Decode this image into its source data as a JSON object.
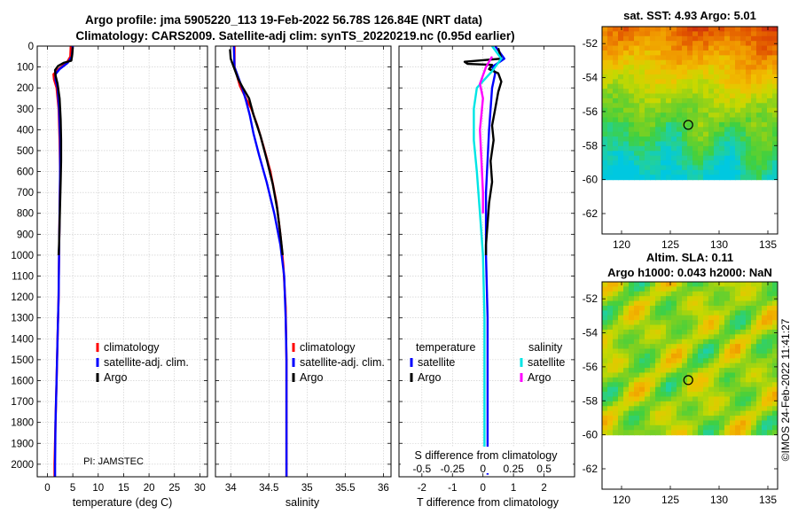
{
  "titles": {
    "line1": "Argo profile: jma 5905220_113 19-Feb-2022 56.78S 126.84E (NRT data)",
    "line2": "Climatology: CARS2009. Satellite-adj clim: synTS_20220219.nc (0.95d earlier)"
  },
  "credit": "PI: JAMSTEC",
  "footer_stamp": "©IMOS 24-Feb-2022 11:41:27",
  "depth_ticks": [
    0,
    100,
    200,
    300,
    400,
    500,
    600,
    700,
    800,
    900,
    1000,
    1100,
    1200,
    1300,
    1400,
    1500,
    1600,
    1700,
    1800,
    1900,
    2000
  ],
  "colors": {
    "climatology": "#ff0000",
    "satellite": "#0000ff",
    "argo": "#000000",
    "sat_diff_s": "#00e5e5",
    "argo_diff_s": "#ff00ff"
  },
  "chart_data": [
    {
      "id": "temperature",
      "type": "line",
      "xlabel": "temperature (deg C)",
      "ylabel": "depth",
      "xlim": [
        -2,
        31.5
      ],
      "ylim": [
        2060,
        0
      ],
      "xticks": [
        0,
        5,
        10,
        15,
        20,
        25,
        30
      ],
      "legend": {
        "entries": [
          "climatology",
          "satellite-adj. clim.",
          "Argo"
        ],
        "placement": "bottom-right"
      },
      "series": [
        {
          "name": "climatology",
          "color": "#ff0000",
          "points": [
            [
              4.6,
              0
            ],
            [
              4.5,
              50
            ],
            [
              3.8,
              80
            ],
            [
              2.2,
              110
            ],
            [
              1.2,
              135
            ],
            [
              1.3,
              160
            ],
            [
              1.8,
              200
            ],
            [
              2.2,
              300
            ],
            [
              2.4,
              450
            ],
            [
              2.5,
              600
            ],
            [
              2.4,
              800
            ],
            [
              2.3,
              1000
            ],
            [
              2.2,
              1200
            ],
            [
              2.0,
              1400
            ],
            [
              1.8,
              1600
            ],
            [
              1.6,
              1800
            ],
            [
              1.4,
              2000
            ],
            [
              1.4,
              2060
            ]
          ]
        },
        {
          "name": "satellite-adj. clim.",
          "color": "#0000ff",
          "points": [
            [
              5.0,
              0
            ],
            [
              4.8,
              50
            ],
            [
              4.0,
              80
            ],
            [
              2.4,
              110
            ],
            [
              1.6,
              135
            ],
            [
              1.6,
              160
            ],
            [
              2.0,
              200
            ],
            [
              2.3,
              300
            ],
            [
              2.5,
              450
            ],
            [
              2.5,
              600
            ],
            [
              2.4,
              800
            ],
            [
              2.3,
              1000
            ],
            [
              2.2,
              1200
            ],
            [
              2.0,
              1400
            ],
            [
              1.8,
              1600
            ],
            [
              1.6,
              1800
            ],
            [
              1.5,
              2000
            ],
            [
              1.5,
              2060
            ]
          ]
        },
        {
          "name": "Argo",
          "color": "#000000",
          "points": [
            [
              5.0,
              5
            ],
            [
              4.9,
              40
            ],
            [
              4.7,
              70
            ],
            [
              3.2,
              80
            ],
            [
              2.1,
              95
            ],
            [
              1.5,
              115
            ],
            [
              1.6,
              140
            ],
            [
              2.0,
              180
            ],
            [
              2.4,
              250
            ],
            [
              2.6,
              350
            ],
            [
              2.7,
              450
            ],
            [
              2.7,
              550
            ],
            [
              2.6,
              650
            ],
            [
              2.5,
              750
            ],
            [
              2.4,
              850
            ],
            [
              2.3,
              950
            ],
            [
              2.2,
              1000
            ]
          ]
        }
      ]
    },
    {
      "id": "salinity",
      "type": "line",
      "xlabel": "salinity",
      "ylabel": "depth",
      "xlim": [
        33.8,
        36.1
      ],
      "ylim": [
        2060,
        0
      ],
      "xticks": [
        34,
        34.5,
        35,
        35.5,
        36
      ],
      "legend": {
        "entries": [
          "climatology",
          "satellite-adj. clim.",
          "Argo"
        ],
        "placement": "bottom-right"
      },
      "series": [
        {
          "name": "climatology",
          "color": "#ff0000",
          "points": [
            [
              34.05,
              0
            ],
            [
              34.05,
              100
            ],
            [
              34.12,
              190
            ],
            [
              34.2,
              250
            ],
            [
              34.27,
              300
            ],
            [
              34.35,
              380
            ],
            [
              34.43,
              480
            ],
            [
              34.52,
              600
            ],
            [
              34.6,
              750
            ],
            [
              34.65,
              900
            ],
            [
              34.69,
              1050
            ],
            [
              34.72,
              1250
            ],
            [
              34.73,
              1500
            ],
            [
              34.73,
              1800
            ],
            [
              34.73,
              2060
            ]
          ]
        },
        {
          "name": "satellite-adj. clim.",
          "color": "#0000ff",
          "points": [
            [
              34.04,
              0
            ],
            [
              34.05,
              100
            ],
            [
              34.15,
              200
            ],
            [
              34.2,
              260
            ],
            [
              34.25,
              330
            ],
            [
              34.3,
              420
            ],
            [
              34.37,
              520
            ],
            [
              34.47,
              650
            ],
            [
              34.57,
              800
            ],
            [
              34.65,
              950
            ],
            [
              34.7,
              1100
            ],
            [
              34.72,
              1300
            ],
            [
              34.73,
              1500
            ],
            [
              34.73,
              1800
            ],
            [
              34.73,
              2060
            ]
          ]
        },
        {
          "name": "Argo",
          "color": "#000000",
          "points": [
            [
              33.99,
              15
            ],
            [
              34.0,
              60
            ],
            [
              34.05,
              110
            ],
            [
              34.1,
              160
            ],
            [
              34.16,
              200
            ],
            [
              34.24,
              250
            ],
            [
              34.3,
              330
            ],
            [
              34.39,
              430
            ],
            [
              34.47,
              540
            ],
            [
              34.55,
              660
            ],
            [
              34.61,
              780
            ],
            [
              34.65,
              900
            ],
            [
              34.68,
              1000
            ]
          ]
        }
      ]
    },
    {
      "id": "difference",
      "type": "line",
      "xlabel": "T difference from climatology",
      "xlabel2": "S difference from climatology",
      "xlim": [
        -2.75,
        3.0
      ],
      "ylim": [
        2060,
        0
      ],
      "xticks": [
        -2,
        -1,
        0,
        1,
        2
      ],
      "s_ticks": [
        "-0.5",
        "-0.25",
        "0",
        "0.25",
        "0.5"
      ],
      "s_tick_positions": [
        -2,
        -1,
        0,
        1,
        2
      ],
      "legend_t": {
        "header": "temperature",
        "entries": [
          "satellite",
          "Argo"
        ],
        "placement": "bottom-left"
      },
      "legend_s": {
        "header": "salinity",
        "entries": [
          "satellite",
          "Argo"
        ],
        "placement": "bottom-right"
      },
      "series": [
        {
          "name": "temperature satellite",
          "color": "#0000ff",
          "points": [
            [
              0.4,
              0
            ],
            [
              0.7,
              60
            ],
            [
              0.3,
              100
            ],
            [
              0.4,
              130
            ],
            [
              0.3,
              200
            ],
            [
              0.2,
              400
            ],
            [
              0.1,
              700
            ],
            [
              0.1,
              1000
            ],
            [
              0.15,
              1300
            ],
            [
              0.15,
              1600
            ],
            [
              0.15,
              2000
            ],
            [
              0.15,
              2050
            ]
          ]
        },
        {
          "name": "temperature Argo",
          "color": "#000000",
          "points": [
            [
              0.5,
              10
            ],
            [
              0.6,
              60
            ],
            [
              -0.6,
              75
            ],
            [
              -0.5,
              85
            ],
            [
              0.3,
              90
            ],
            [
              0.2,
              110
            ],
            [
              0.5,
              130
            ],
            [
              0.6,
              170
            ],
            [
              0.5,
              220
            ],
            [
              0.4,
              300
            ],
            [
              0.3,
              380
            ],
            [
              0.35,
              450
            ],
            [
              0.25,
              550
            ],
            [
              0.3,
              650
            ],
            [
              0.2,
              750
            ],
            [
              0.15,
              850
            ],
            [
              0.1,
              950
            ],
            [
              0.1,
              1000
            ]
          ]
        },
        {
          "name": "salinity satellite",
          "color": "#00e5e5",
          "points": [
            [
              0.3,
              0
            ],
            [
              0.6,
              60
            ],
            [
              0.3,
              120
            ],
            [
              -0.2,
              200
            ],
            [
              -0.3,
              300
            ],
            [
              -0.3,
              450
            ],
            [
              -0.2,
              600
            ],
            [
              -0.1,
              800
            ],
            [
              0.0,
              1000
            ],
            [
              0.05,
              1300
            ],
            [
              0.05,
              1600
            ],
            [
              0.05,
              1900
            ],
            [
              0.05,
              2020
            ]
          ]
        },
        {
          "name": "salinity Argo",
          "color": "#ff00ff",
          "points": [
            [
              0.3,
              50
            ],
            [
              0.1,
              100
            ],
            [
              -0.1,
              180
            ],
            [
              0.0,
              250
            ],
            [
              -0.1,
              400
            ],
            [
              -0.05,
              550
            ],
            [
              0.0,
              700
            ],
            [
              0.0,
              800
            ]
          ]
        }
      ]
    },
    {
      "id": "sst_map",
      "type": "heatmap",
      "title": "sat. SST: 4.93 Argo: 5.01",
      "xlim": [
        118,
        136
      ],
      "ylim": [
        -63.2,
        -51
      ],
      "xticks": [
        120,
        125,
        130,
        135
      ],
      "yticks": [
        -52,
        -54,
        -56,
        -58,
        -60,
        -62
      ],
      "data_extent_lat_min": -60,
      "marker": [
        126.84,
        -56.78
      ]
    },
    {
      "id": "sla_map",
      "type": "heatmap",
      "title1": "Altim. SLA: 0.11",
      "title2": "Argo h1000: 0.043 h2000: NaN",
      "xlim": [
        118,
        136
      ],
      "ylim": [
        -63.2,
        -51
      ],
      "xticks": [
        120,
        125,
        130,
        135
      ],
      "yticks": [
        -52,
        -54,
        -56,
        -58,
        -60,
        -62
      ],
      "data_extent_lat_min": -60,
      "marker": [
        126.84,
        -56.78
      ]
    }
  ]
}
